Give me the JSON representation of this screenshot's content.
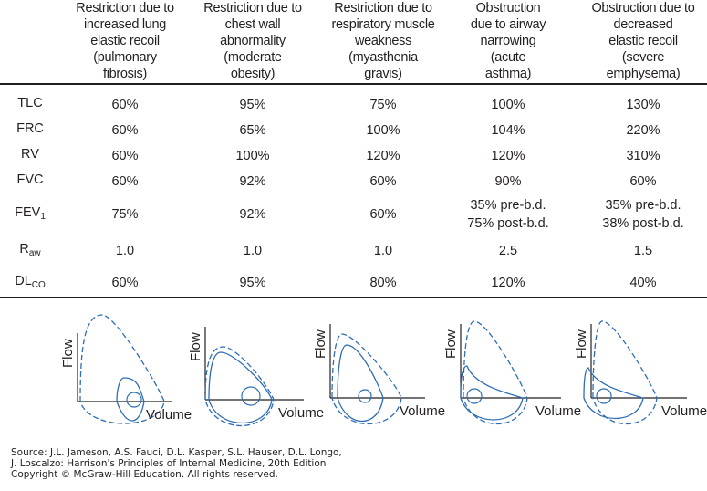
{
  "columns": [
    "Restriction due to\nincreased lung\nelastic recoil\n(pulmonary\nfibrosis)",
    "Restriction due to\nchest wall\nabnormality\n(moderate\nobesity)",
    "Restriction due to\nrespiratory muscle\nweakness\n(myasthenia\ngravis)",
    "Obstruction\ndue to airway\nnarrowing\n(acute\nasthma)",
    "Obstruction due to\ndecreased\nelastic recoil\n(severe\nemphysema)"
  ],
  "rows": [
    {
      "label": "TLC",
      "sub": "",
      "values": [
        "60%",
        "95%",
        "75%",
        "100%",
        "130%"
      ]
    },
    {
      "label": "FRC",
      "sub": "",
      "values": [
        "60%",
        "65%",
        "100%",
        "104%",
        "220%"
      ]
    },
    {
      "label": "RV",
      "sub": "",
      "values": [
        "60%",
        "100%",
        "120%",
        "120%",
        "310%"
      ]
    },
    {
      "label": "FVC",
      "sub": "",
      "values": [
        "60%",
        "92%",
        "60%",
        "90%",
        "60%"
      ]
    },
    {
      "label": "FEV",
      "sub": "1",
      "values": [
        "75%",
        "92%",
        "60%",
        "35% pre-b.d.\n75% post-b.d.",
        "35% pre-b.d.\n38% post-b.d."
      ]
    },
    {
      "label": "R",
      "sub": "aw",
      "values": [
        "1.0",
        "1.0",
        "1.0",
        "2.5",
        "1.5"
      ]
    },
    {
      "label": "DL",
      "sub": "CO",
      "values": [
        "60%",
        "95%",
        "80%",
        "120%",
        "40%"
      ]
    }
  ],
  "diagrams": {
    "y_label": "Flow",
    "x_label": "Volume",
    "line_color": "#2f6db5"
  },
  "source": [
    "Source: J.L. Jameson, A.S. Fauci, D.L. Kasper, S.L. Hauser, D.L. Longo,",
    "J. Loscalzo: Harrison's Principles of Internal Medicine, 20th Edition",
    "Copyright © McGraw-Hill Education. All rights reserved."
  ]
}
